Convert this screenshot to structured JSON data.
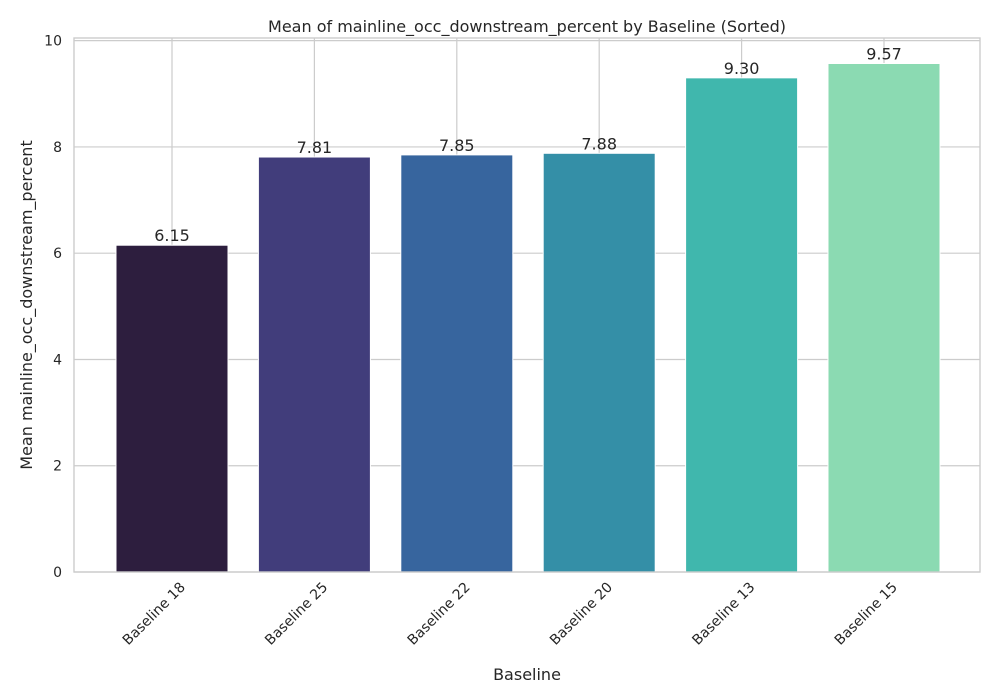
{
  "chart_data": {
    "type": "bar",
    "title": "Mean of mainline_occ_downstream_percent by Baseline (Sorted)",
    "xlabel": "Baseline",
    "ylabel": "Mean mainline_occ_downstream_percent",
    "categories": [
      "Baseline 18",
      "Baseline 25",
      "Baseline 22",
      "Baseline 20",
      "Baseline 13",
      "Baseline 15"
    ],
    "values": [
      6.15,
      7.81,
      7.85,
      7.88,
      9.3,
      9.57
    ],
    "value_labels": [
      "6.15",
      "7.81",
      "7.85",
      "7.88",
      "9.30",
      "9.57"
    ],
    "colors": [
      "#2d1e3e",
      "#413d7b",
      "#37659e",
      "#348fa7",
      "#40b7ad",
      "#8bdab2"
    ],
    "ylim": [
      0,
      10.05
    ],
    "yticks": [
      0,
      2,
      4,
      6,
      8,
      10
    ],
    "ytick_labels": [
      "0",
      "2",
      "4",
      "6",
      "8",
      "10"
    ],
    "grid": true,
    "legend": "none"
  }
}
